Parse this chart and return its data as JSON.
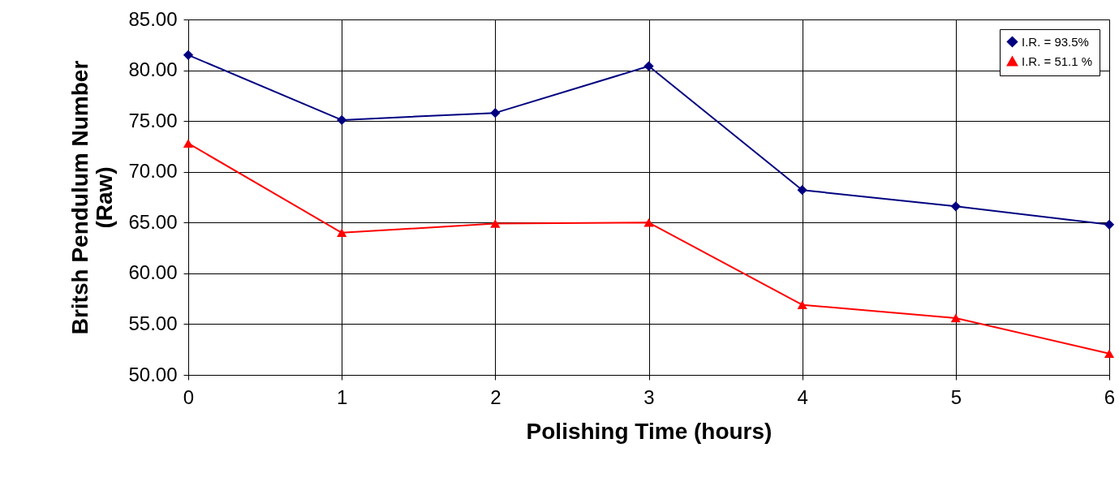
{
  "chart_data": {
    "type": "line",
    "xlabel": "Polishing Time (hours)",
    "ylabel": "Britsh Pendulum Number\n(Raw)",
    "x": [
      0,
      1,
      2,
      3,
      4,
      5,
      6
    ],
    "series": [
      {
        "name": "I.R. = 93.5%",
        "color": "#000080",
        "marker": "diamond",
        "values": [
          81.5,
          75.1,
          75.8,
          80.4,
          68.2,
          66.6,
          64.8
        ]
      },
      {
        "name": "I.R. = 51.1 %",
        "color": "#ff0000",
        "marker": "triangle",
        "values": [
          72.8,
          64.0,
          64.9,
          65.0,
          56.9,
          55.6,
          52.1
        ]
      }
    ],
    "xlim": [
      0,
      6
    ],
    "xticks": [
      0,
      1,
      2,
      3,
      4,
      5,
      6
    ],
    "ylim": [
      50,
      85
    ],
    "yticks": [
      {
        "value": 50,
        "label": "50.00"
      },
      {
        "value": 55,
        "label": "55.00"
      },
      {
        "value": 60,
        "label": "60.00"
      },
      {
        "value": 65,
        "label": "65.00"
      },
      {
        "value": 70,
        "label": "70.00"
      },
      {
        "value": 75,
        "label": "75.00"
      },
      {
        "value": 80,
        "label": "80.00"
      },
      {
        "value": 85,
        "label": "85.00"
      }
    ],
    "grid": true,
    "legend": "top right",
    "line_style": "solid"
  }
}
